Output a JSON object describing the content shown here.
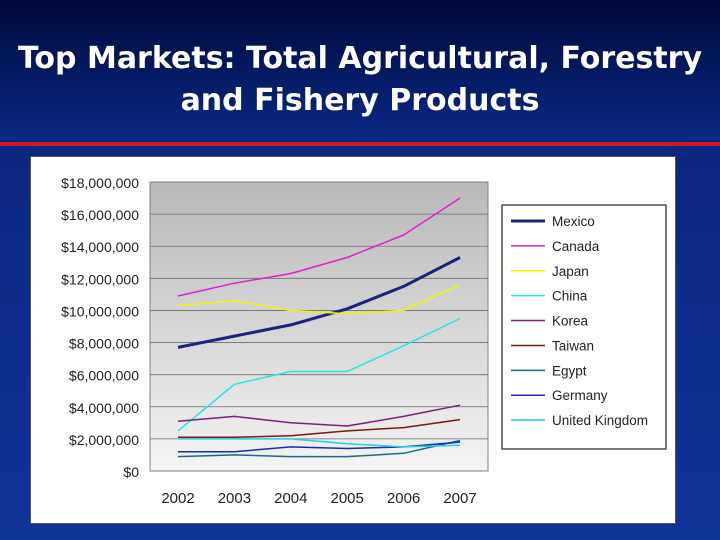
{
  "slide": {
    "title_line1": "Top Markets: Total Agricultural, Forestry",
    "title_line2": "and Fishery Products"
  },
  "chart_data": {
    "type": "line",
    "title": "",
    "xlabel": "",
    "ylabel": "",
    "categories": [
      "2002",
      "2003",
      "2004",
      "2005",
      "2006",
      "2007"
    ],
    "ylim": [
      0,
      18000000
    ],
    "yticks": [
      "$0",
      "$2,000,000",
      "$4,000,000",
      "$6,000,000",
      "$8,000,000",
      "$10,000,000",
      "$12,000,000",
      "$14,000,000",
      "$16,000,000",
      "$18,000,000"
    ],
    "grid": true,
    "legend_position": "right",
    "series": [
      {
        "name": "Mexico",
        "color": "#1a237e",
        "width": 3,
        "values": [
          7700000,
          8400000,
          9100000,
          10100000,
          11500000,
          13300000
        ]
      },
      {
        "name": "Canada",
        "color": "#e01fd0",
        "width": 1.5,
        "values": [
          10900000,
          11700000,
          12300000,
          13300000,
          14700000,
          17000000
        ]
      },
      {
        "name": "Japan",
        "color": "#f4f400",
        "width": 1.5,
        "values": [
          10300000,
          10600000,
          10000000,
          9800000,
          10000000,
          11600000
        ]
      },
      {
        "name": "China",
        "color": "#22e5e5",
        "width": 1.5,
        "values": [
          2500000,
          5400000,
          6200000,
          6200000,
          7800000,
          9500000
        ]
      },
      {
        "name": "Korea",
        "color": "#7a1f7a",
        "width": 1.5,
        "values": [
          3100000,
          3400000,
          3000000,
          2800000,
          3400000,
          4100000
        ]
      },
      {
        "name": "Taiwan",
        "color": "#7a1a10",
        "width": 1.5,
        "values": [
          2100000,
          2100000,
          2200000,
          2500000,
          2700000,
          3200000
        ]
      },
      {
        "name": "Egypt",
        "color": "#1a6a80",
        "width": 1.5,
        "values": [
          900000,
          1000000,
          900000,
          900000,
          1100000,
          1900000
        ]
      },
      {
        "name": "Germany",
        "color": "#1a2ab0",
        "width": 1.5,
        "values": [
          1200000,
          1200000,
          1500000,
          1400000,
          1500000,
          1800000
        ]
      },
      {
        "name": "United Kingdom",
        "color": "#22d0e5",
        "width": 1.5,
        "values": [
          2000000,
          2000000,
          2000000,
          1700000,
          1500000,
          1600000
        ]
      }
    ]
  }
}
